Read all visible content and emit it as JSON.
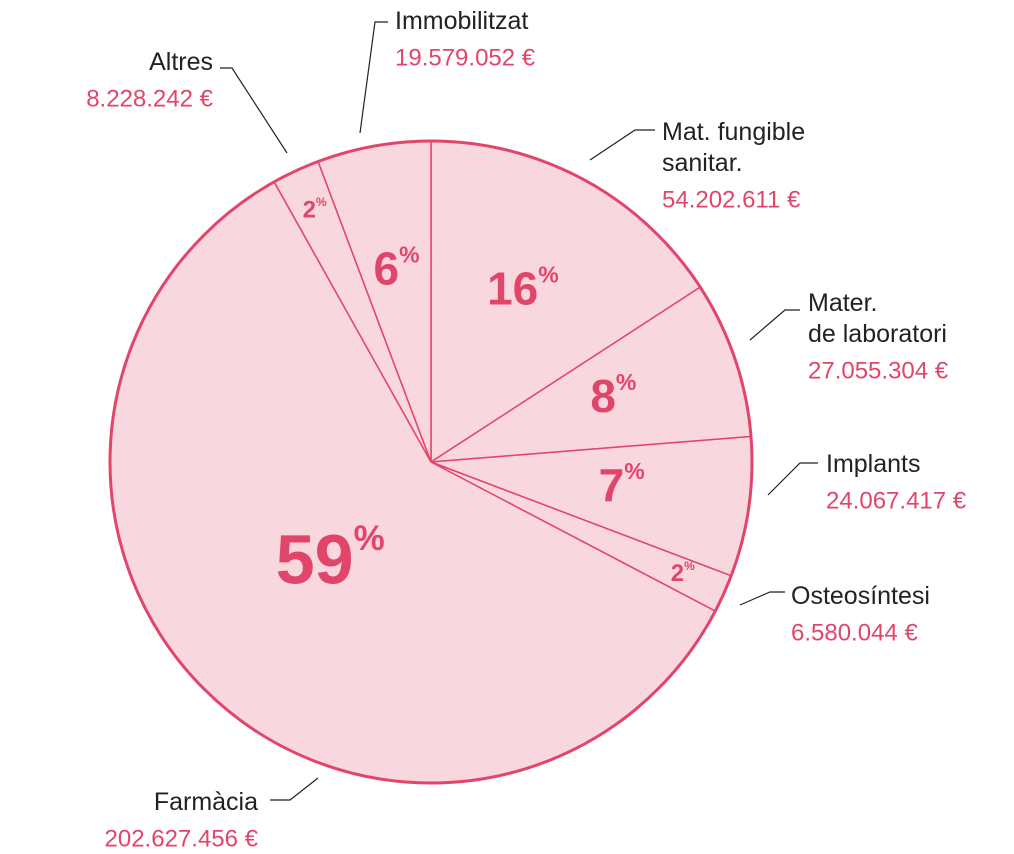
{
  "chart_data": {
    "type": "pie",
    "categories": [
      "Mat. fungible\nsanitar.",
      "Mater.\nde laboratori",
      "Implants",
      "Osteosíntesi",
      "Farmàcia",
      "Altres",
      "Immobilitzat"
    ],
    "values": [
      54202611,
      27055304,
      24067417,
      6580044,
      202627456,
      8228242,
      19579052
    ],
    "value_labels": [
      "54.202.611 €",
      "27.055.304 €",
      "24.067.417 €",
      "6.580.044 €",
      "202.627.456 €",
      "8.228.242 €",
      "19.579.052 €"
    ],
    "percents": [
      16,
      8,
      7,
      2,
      59,
      2,
      6
    ],
    "percent_sign": "%",
    "color": "#f9d7de",
    "edge_color": "#e2456a"
  }
}
